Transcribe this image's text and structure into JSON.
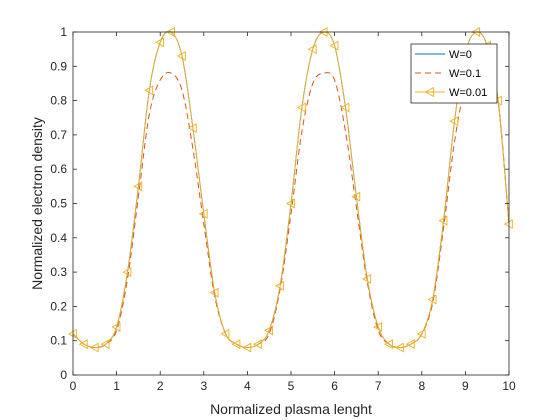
{
  "chart_data": {
    "type": "line",
    "title": "",
    "xlabel": "Normalized plasma lenght",
    "ylabel": "Normalized electron density",
    "xlim": [
      0,
      10
    ],
    "ylim": [
      0,
      1
    ],
    "xticks": [
      0,
      1,
      2,
      3,
      4,
      5,
      6,
      7,
      8,
      9,
      10
    ],
    "yticks": [
      0,
      0.1,
      0.2,
      0.3,
      0.4,
      0.5,
      0.6,
      0.7,
      0.8,
      0.9,
      1
    ],
    "grid": false,
    "legend_position": "top-right",
    "x": [
      0,
      0.25,
      0.5,
      0.75,
      1,
      1.25,
      1.5,
      1.75,
      2,
      2.25,
      2.5,
      2.75,
      3,
      3.25,
      3.5,
      3.75,
      4,
      4.25,
      4.5,
      4.75,
      5,
      5.25,
      5.5,
      5.75,
      6,
      6.25,
      6.5,
      6.75,
      7,
      7.25,
      7.5,
      7.75,
      8,
      8.25,
      8.5,
      8.75,
      9,
      9.25,
      9.5,
      9.75,
      10
    ],
    "series": [
      {
        "name": "W=0",
        "color": "#0072bd",
        "style": "solid",
        "marker": "none",
        "values": [
          0.12,
          0.09,
          0.08,
          0.09,
          0.14,
          0.3,
          0.55,
          0.83,
          0.97,
          1.0,
          0.93,
          0.72,
          0.47,
          0.24,
          0.12,
          0.09,
          0.08,
          0.09,
          0.13,
          0.26,
          0.5,
          0.78,
          0.95,
          1.0,
          0.96,
          0.78,
          0.52,
          0.28,
          0.14,
          0.09,
          0.08,
          0.09,
          0.12,
          0.22,
          0.45,
          0.74,
          0.94,
          1.0,
          0.96,
          0.8,
          0.44
        ]
      },
      {
        "name": "W=0.1",
        "color": "#d95319",
        "style": "dashed",
        "marker": "none",
        "values": [
          0.12,
          0.09,
          0.08,
          0.09,
          0.13,
          0.28,
          0.52,
          0.76,
          0.86,
          0.88,
          0.83,
          0.66,
          0.44,
          0.23,
          0.12,
          0.09,
          0.08,
          0.09,
          0.12,
          0.25,
          0.47,
          0.71,
          0.85,
          0.88,
          0.86,
          0.71,
          0.49,
          0.27,
          0.13,
          0.09,
          0.08,
          0.09,
          0.12,
          0.21,
          0.43,
          0.68,
          0.84,
          0.88,
          0.9,
          0.8,
          0.44
        ]
      },
      {
        "name": "W=0.01",
        "color": "#edb120",
        "style": "solid",
        "marker": "triangle-left",
        "values": [
          0.12,
          0.09,
          0.08,
          0.09,
          0.14,
          0.3,
          0.55,
          0.83,
          0.97,
          1.0,
          0.93,
          0.72,
          0.47,
          0.24,
          0.12,
          0.09,
          0.08,
          0.09,
          0.13,
          0.26,
          0.5,
          0.78,
          0.95,
          1.0,
          0.96,
          0.78,
          0.52,
          0.28,
          0.14,
          0.09,
          0.08,
          0.09,
          0.12,
          0.22,
          0.45,
          0.74,
          0.94,
          1.0,
          0.96,
          0.8,
          0.44
        ]
      }
    ]
  }
}
